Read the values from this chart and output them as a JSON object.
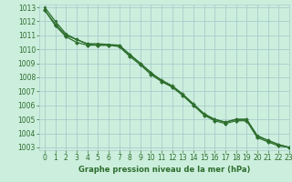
{
  "title": "Graphe pression niveau de la mer (hPa)",
  "background_color": "#cceedd",
  "grid_color": "#aacccc",
  "line_color": "#2d6e2d",
  "xlim": [
    -0.5,
    23
  ],
  "ylim": [
    1002.8,
    1013.2
  ],
  "xticks": [
    0,
    1,
    2,
    3,
    4,
    5,
    6,
    7,
    8,
    9,
    10,
    11,
    12,
    13,
    14,
    15,
    16,
    17,
    18,
    19,
    20,
    21,
    22,
    23
  ],
  "yticks": [
    1003,
    1004,
    1005,
    1006,
    1007,
    1008,
    1009,
    1010,
    1011,
    1012,
    1013
  ],
  "series": [
    {
      "x": [
        0,
        1,
        2,
        3,
        4,
        5,
        6,
        7,
        8,
        9,
        10,
        11,
        12,
        13,
        14,
        15,
        16,
        17,
        18,
        19,
        20,
        21,
        22,
        23
      ],
      "y": [
        1012.8,
        1011.8,
        1011.0,
        1010.7,
        1010.4,
        1010.3,
        1010.3,
        1010.3,
        1009.6,
        1009.0,
        1008.3,
        1007.8,
        1007.4,
        1006.8,
        1006.1,
        1005.4,
        1005.0,
        1004.8,
        1005.0,
        1005.0,
        1003.8,
        1003.5,
        1003.2,
        1003.0
      ]
    },
    {
      "x": [
        0,
        1,
        2,
        3,
        4,
        5,
        6,
        7,
        8,
        9,
        10,
        11,
        12,
        13,
        14,
        15,
        16,
        17,
        18,
        19,
        20,
        21,
        22,
        23
      ],
      "y": [
        1013.0,
        1012.0,
        1011.1,
        1010.7,
        1010.4,
        1010.4,
        1010.35,
        1010.3,
        1009.65,
        1009.0,
        1008.35,
        1007.75,
        1007.35,
        1006.75,
        1006.05,
        1005.35,
        1005.0,
        1004.8,
        1005.0,
        1005.0,
        1003.85,
        1003.5,
        1003.2,
        1003.0
      ]
    },
    {
      "x": [
        0,
        1,
        2,
        3,
        4,
        5,
        6,
        7,
        8,
        9,
        10,
        11,
        12,
        13,
        14,
        15,
        16,
        17,
        18,
        19,
        20,
        21,
        22,
        23
      ],
      "y": [
        1012.8,
        1011.7,
        1010.9,
        1010.5,
        1010.3,
        1010.3,
        1010.3,
        1010.2,
        1009.5,
        1008.9,
        1008.2,
        1007.7,
        1007.3,
        1006.7,
        1006.0,
        1005.3,
        1004.9,
        1004.7,
        1004.9,
        1004.9,
        1003.7,
        1003.4,
        1003.1,
        1003.0
      ]
    }
  ],
  "tick_fontsize": 5.5,
  "label_fontsize": 6.0,
  "linewidth": 0.9,
  "markersize": 3.0
}
